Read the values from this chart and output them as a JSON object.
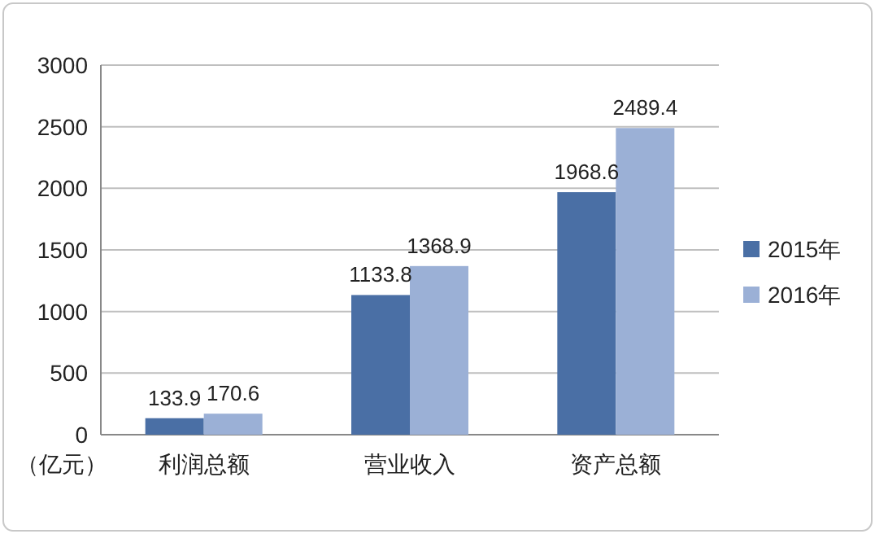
{
  "chart_data": {
    "type": "bar",
    "categories": [
      "利润总额",
      "营业收入",
      "资产总额"
    ],
    "ylabel": "（亿元）",
    "series": [
      {
        "name": "2015年",
        "color": "#4a6fa5",
        "values": [
          133.9,
          1133.8,
          1968.6
        ]
      },
      {
        "name": "2016年",
        "color": "#9bb0d6",
        "values": [
          170.6,
          1368.9,
          2489.4
        ]
      }
    ],
    "ylim": [
      0,
      3000
    ],
    "yticks": [
      0,
      500,
      1000,
      1500,
      2000,
      2500,
      3000
    ],
    "grid": "y",
    "legend": "right",
    "data_labels": true
  }
}
